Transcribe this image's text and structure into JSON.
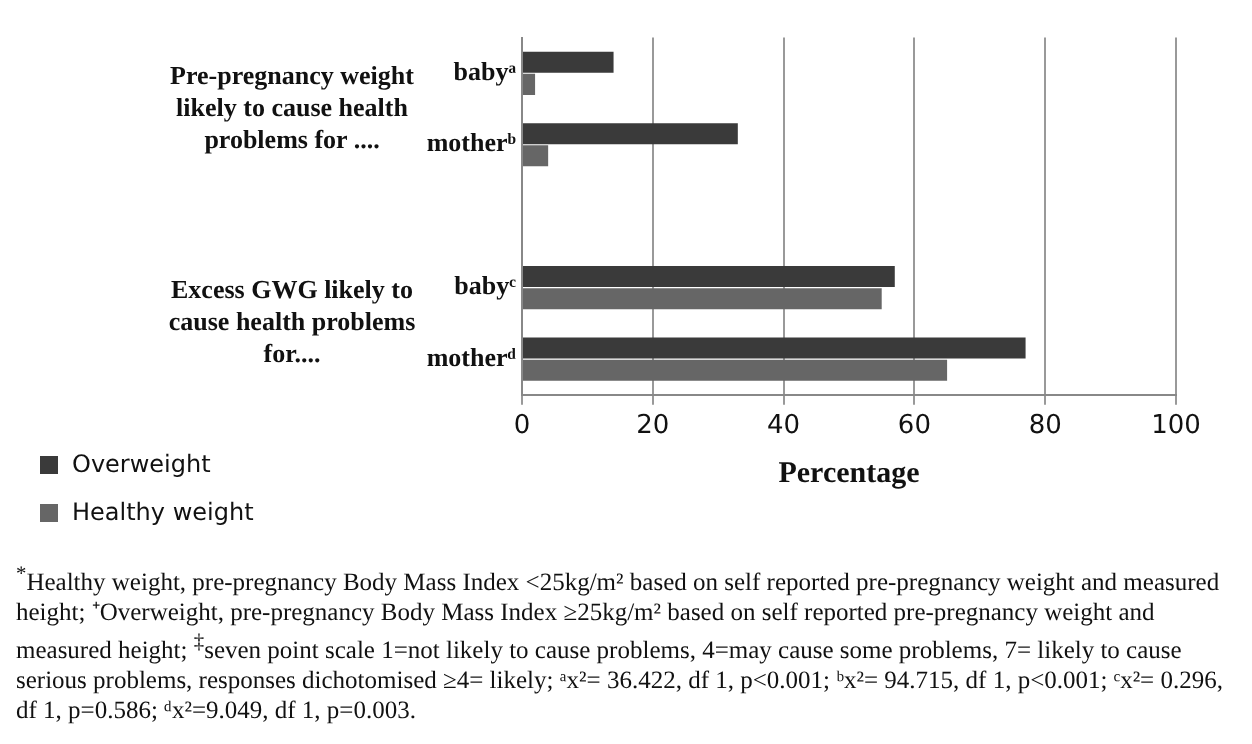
{
  "chart_data": {
    "type": "bar",
    "orientation": "horizontal",
    "xlabel": "Percentage",
    "categories": [
      "babyᵃ",
      "motherᵇ",
      null,
      "babyᶜ",
      "motherᵈ"
    ],
    "series": [
      {
        "name": "Overweight",
        "color": "#3a3a3a",
        "values": [
          14,
          33,
          null,
          57,
          77
        ]
      },
      {
        "name": "Healthy weight",
        "color": "#666666",
        "values": [
          2,
          4,
          null,
          55,
          65
        ]
      }
    ],
    "xlim": [
      0,
      100
    ],
    "xticks": [
      0,
      20,
      40,
      60,
      80,
      100
    ],
    "grid": "x",
    "legend": "bottom left",
    "annotations": [
      "Pre-pregnancy weight likely to cause health problems for ....",
      "Excess GWG likely to cause health problems for....",
      "$^{*}$Healthy weight, pre-pregnancy Body Mass Index <25kg/m² based on self reported pre-pregnancy weight and measured height; ⁺Overweight, pre-pregnancy Body Mass Index ≥25kg/m² based on self reported pre-pregnancy weight and measured height; $^{‡}$seven point scale 1=not likely to cause problems, 4=may cause some problems, 7= likely to cause serious problems, responses dichotomised ≥4= likely; ᵃx²= 36.422, df 1, p<0.001; ᵇx²= 94.715, df 1, p<0.001; ᶜx²= 0.296, df 1, p=0.586; ᵈx²=9.049, df 1, p=0.003."
    ]
  }
}
